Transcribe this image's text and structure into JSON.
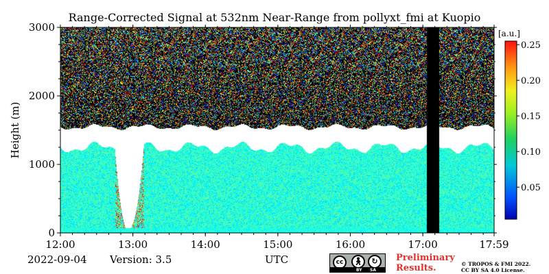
{
  "chart_data": {
    "type": "heatmap",
    "title": "Range-Corrected Signal at 532nm Near-Range from pollyxt_fmi at Kuopio",
    "ylabel": "Height (m)",
    "xlabel": "UTC",
    "x_ticks": [
      "12:00",
      "13:00",
      "14:00",
      "15:00",
      "16:00",
      "17:00",
      "17:59"
    ],
    "x_tick_hours": [
      12.0,
      13.0,
      14.0,
      15.0,
      16.0,
      17.0,
      17.9833
    ],
    "xlim_hours": [
      12.0,
      17.9833
    ],
    "y_ticks": [
      0,
      1000,
      2000,
      3000
    ],
    "ylim": [
      0,
      3000
    ],
    "colorbar": {
      "label": "[a.u.]",
      "ticks": [
        "0.05",
        "0.10",
        "0.15",
        "0.20",
        "0.25"
      ],
      "tick_values": [
        0.05,
        0.1,
        0.15,
        0.2,
        0.25
      ],
      "range": [
        0.005,
        0.255
      ],
      "colormap": "jet"
    },
    "features": {
      "data_gap_hours": [
        17.05,
        17.22
      ],
      "saturated_layer_top_m": 1550,
      "saturated_layer_bottom_m": 1250,
      "strong_signal_column_hours": [
        12.75,
        13.15
      ],
      "missing_color": "#ffffff",
      "no_data_color": "#000000"
    }
  },
  "footer": {
    "date": "2022-09-04",
    "version": "Version: 3.5",
    "license_badge": {
      "cc": "cc",
      "by": "BY",
      "sa": "SA"
    },
    "preliminary": [
      "Preliminary",
      "Results."
    ],
    "copyright": [
      "© TROPOS & FMI 2022.",
      "CC BY SA 4.0 License."
    ]
  }
}
